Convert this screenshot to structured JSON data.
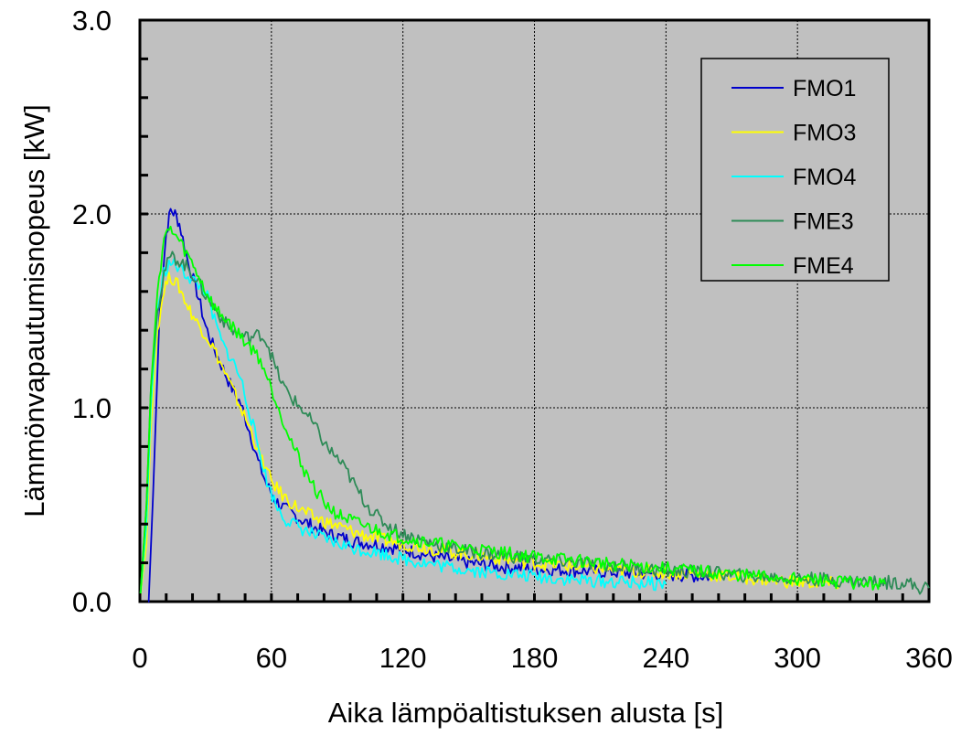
{
  "chart_data": {
    "type": "line",
    "xlabel": "Aika lämpöaltistuksen alusta  [s]",
    "ylabel": "Lämmönvapautumisnopeus  [kW]",
    "xlim": [
      0,
      360
    ],
    "ylim": [
      0,
      3.0
    ],
    "x_ticks": [
      "0",
      "60",
      "120",
      "180",
      "240",
      "300",
      "360"
    ],
    "y_ticks": [
      "0.0",
      "1.0",
      "2.0",
      "3.0"
    ],
    "grid": true,
    "legend_position": "top-right",
    "plot_background": "#c0c0c0",
    "series": [
      {
        "name": "FMO1",
        "color": "#0000cc",
        "x": [
          0,
          4,
          6,
          9,
          12,
          14,
          16,
          18,
          22,
          26,
          30,
          34,
          38,
          42,
          46,
          50,
          54,
          58,
          62,
          66,
          70,
          74,
          80,
          86,
          92,
          98,
          105,
          110,
          120,
          135,
          150,
          165,
          180,
          200,
          220,
          240,
          260
        ],
        "y": [
          0,
          0,
          0.55,
          1.5,
          1.9,
          2.02,
          2.0,
          1.95,
          1.75,
          1.6,
          1.42,
          1.3,
          1.2,
          1.1,
          1.02,
          0.88,
          0.72,
          0.6,
          0.52,
          0.48,
          0.45,
          0.42,
          0.38,
          0.35,
          0.33,
          0.31,
          0.3,
          0.29,
          0.27,
          0.23,
          0.2,
          0.18,
          0.17,
          0.16,
          0.15,
          0.14,
          0.13
        ]
      },
      {
        "name": "FMO3",
        "color": "#ffff00",
        "x": [
          0,
          3,
          5,
          8,
          11,
          14,
          18,
          22,
          26,
          30,
          34,
          38,
          42,
          46,
          50,
          55,
          60,
          65,
          70,
          75,
          80,
          90,
          100,
          110,
          120,
          140,
          160,
          180,
          200,
          220,
          240,
          260,
          280,
          300,
          320
        ],
        "y": [
          0,
          0.3,
          0.9,
          1.4,
          1.62,
          1.68,
          1.62,
          1.52,
          1.44,
          1.38,
          1.3,
          1.2,
          1.1,
          1.0,
          0.9,
          0.75,
          0.62,
          0.55,
          0.5,
          0.46,
          0.43,
          0.39,
          0.35,
          0.32,
          0.3,
          0.26,
          0.23,
          0.2,
          0.18,
          0.16,
          0.15,
          0.14,
          0.12,
          0.1,
          0.09
        ]
      },
      {
        "name": "FMO4",
        "color": "#00ffff",
        "x": [
          0,
          3,
          5,
          8,
          11,
          14,
          18,
          22,
          26,
          30,
          34,
          38,
          42,
          46,
          50,
          54,
          58,
          62,
          66,
          70,
          75,
          80,
          90,
          100,
          110,
          120,
          140,
          160,
          180,
          200,
          220,
          240
        ],
        "y": [
          0,
          0.4,
          1.0,
          1.5,
          1.7,
          1.75,
          1.72,
          1.68,
          1.64,
          1.6,
          1.45,
          1.32,
          1.25,
          1.15,
          0.98,
          0.8,
          0.62,
          0.5,
          0.43,
          0.4,
          0.37,
          0.34,
          0.3,
          0.27,
          0.25,
          0.22,
          0.18,
          0.15,
          0.13,
          0.11,
          0.1,
          0.09
        ]
      },
      {
        "name": "FME3",
        "color": "#2e8b57",
        "x": [
          0,
          3,
          5,
          8,
          11,
          14,
          18,
          22,
          26,
          30,
          35,
          40,
          45,
          50,
          55,
          58,
          62,
          66,
          70,
          75,
          80,
          85,
          90,
          95,
          100,
          105,
          110,
          115,
          120,
          130,
          140,
          150,
          165,
          180,
          200,
          220,
          240,
          260,
          280,
          300,
          320,
          340,
          350,
          355,
          360
        ],
        "y": [
          0,
          0.5,
          1.1,
          1.5,
          1.7,
          1.78,
          1.76,
          1.72,
          1.66,
          1.58,
          1.5,
          1.42,
          1.38,
          1.36,
          1.38,
          1.34,
          1.2,
          1.1,
          1.04,
          0.98,
          0.9,
          0.8,
          0.74,
          0.66,
          0.56,
          0.48,
          0.42,
          0.38,
          0.35,
          0.31,
          0.28,
          0.26,
          0.24,
          0.22,
          0.2,
          0.18,
          0.16,
          0.15,
          0.13,
          0.12,
          0.11,
          0.1,
          0.1,
          0.07,
          0.07
        ]
      },
      {
        "name": "FME4",
        "color": "#00ff00",
        "x": [
          0,
          3,
          5,
          8,
          11,
          14,
          18,
          22,
          26,
          30,
          35,
          40,
          45,
          50,
          55,
          60,
          65,
          70,
          75,
          80,
          85,
          90,
          100,
          110,
          120,
          140,
          160,
          180,
          200,
          220,
          240,
          260,
          280,
          300,
          320,
          340
        ],
        "y": [
          0,
          0.5,
          1.1,
          1.6,
          1.88,
          1.92,
          1.86,
          1.78,
          1.7,
          1.6,
          1.5,
          1.45,
          1.38,
          1.32,
          1.25,
          1.1,
          0.95,
          0.8,
          0.68,
          0.58,
          0.5,
          0.45,
          0.4,
          0.36,
          0.33,
          0.29,
          0.26,
          0.23,
          0.21,
          0.19,
          0.17,
          0.15,
          0.13,
          0.12,
          0.1,
          0.09
        ]
      }
    ]
  }
}
